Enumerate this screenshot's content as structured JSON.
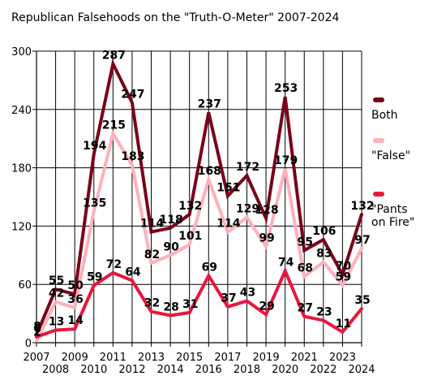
{
  "chart_data": {
    "type": "line",
    "title": "Republican Falsehoods on the \"Truth-O-Meter\" 2007-2024",
    "xlabel": "",
    "ylabel": "",
    "x": [
      2007,
      2008,
      2009,
      2010,
      2011,
      2012,
      2013,
      2014,
      2015,
      2016,
      2017,
      2018,
      2019,
      2020,
      2021,
      2022,
      2023,
      2024
    ],
    "x_tick_labels": [
      "2007",
      "2008",
      "2009",
      "2010",
      "2011",
      "2012",
      "2013",
      "2014",
      "2015",
      "2016",
      "2017",
      "2018",
      "2019",
      "2020",
      "2021",
      "2022",
      "2023",
      "2024"
    ],
    "ylim": [
      0,
      300
    ],
    "y_ticks": [
      0,
      60,
      120,
      180,
      240,
      300
    ],
    "grid": true,
    "legend_position": "right",
    "series": [
      {
        "name": "Both",
        "color": "#7a0019",
        "values": [
          8,
          55,
          50,
          194,
          287,
          247,
          114,
          118,
          132,
          237,
          151,
          172,
          128,
          253,
          95,
          106,
          70,
          132
        ],
        "labels": [
          "8",
          "55",
          "50",
          "194",
          "287",
          "247",
          "114",
          "118",
          "132",
          "237",
          "151",
          "172",
          "128",
          "253",
          "95",
          "106",
          "70",
          "132"
        ]
      },
      {
        "name": "\"False\"",
        "color": "#ffb0bb",
        "values": [
          2,
          42,
          36,
          135,
          215,
          183,
          82,
          90,
          101,
          168,
          114,
          129,
          99,
          179,
          68,
          83,
          59,
          97
        ],
        "labels": [
          "2",
          "42",
          "36",
          "135",
          "215",
          "183",
          "82",
          "90",
          "101",
          "168",
          "114",
          "129",
          "99",
          "179",
          "68",
          "83",
          "59",
          "97"
        ]
      },
      {
        "name": "\"Pants\non Fire\"",
        "color": "#e8173c",
        "values": [
          6,
          13,
          14,
          59,
          72,
          64,
          32,
          28,
          31,
          69,
          37,
          43,
          29,
          74,
          27,
          23,
          11,
          35
        ],
        "labels": [
          "6",
          "13",
          "14",
          "59",
          "72",
          "64",
          "32",
          "28",
          "31",
          "69",
          "37",
          "43",
          "29",
          "74",
          "27",
          "23",
          "11",
          "35"
        ]
      }
    ]
  }
}
